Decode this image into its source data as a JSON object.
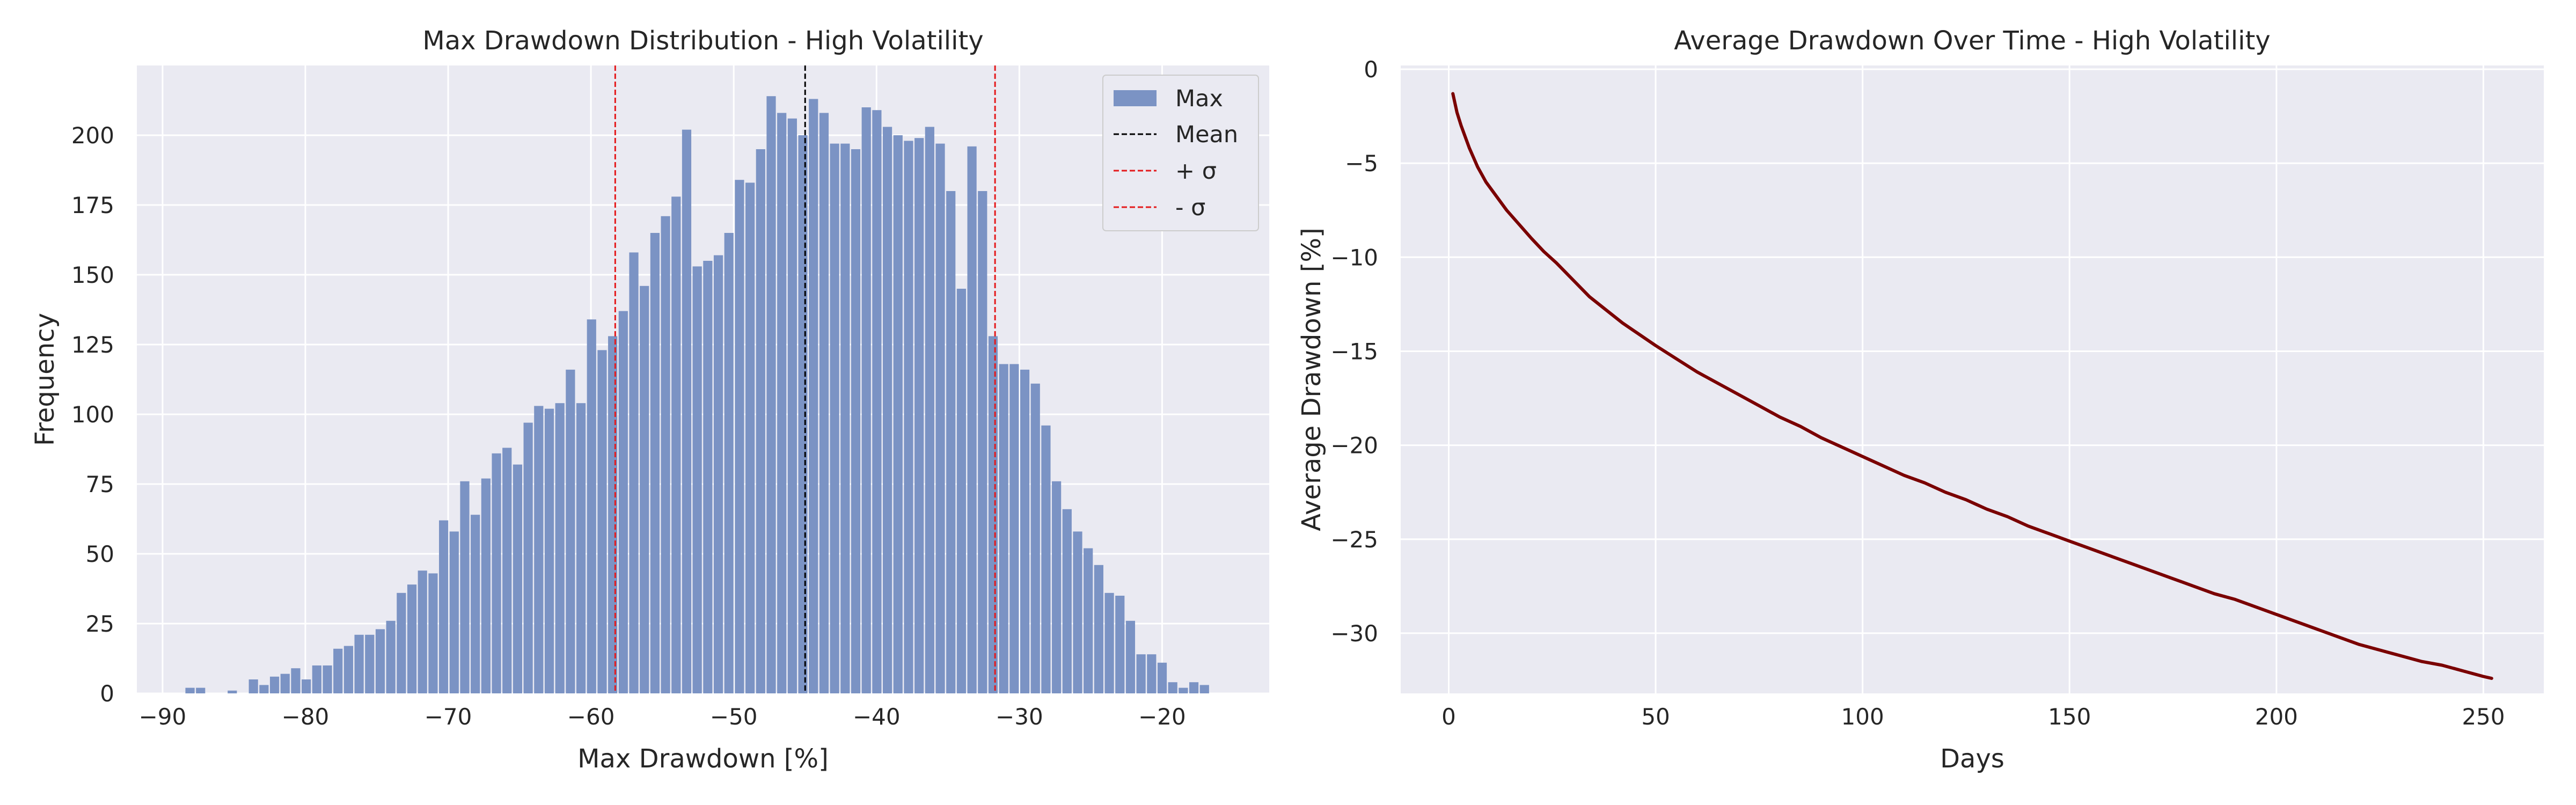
{
  "colors": {
    "background": "#EAEAF2",
    "grid": "#FFFFFF",
    "bar": "#7B93C4",
    "mean_line": "#000000",
    "sigma_line": "#E41A1C",
    "avg_line": "#7A0000"
  },
  "chart_data": [
    {
      "type": "bar",
      "title": "Max Drawdown Distribution - High Volatility",
      "xlabel": "Max Drawdown [%]",
      "ylabel": "Frequency",
      "xlim": [
        -91.8,
        -12.5
      ],
      "ylim": [
        0,
        225
      ],
      "xticks": [
        -90,
        -80,
        -70,
        -60,
        -50,
        -40,
        -30,
        -20
      ],
      "yticks": [
        0,
        25,
        50,
        75,
        100,
        125,
        150,
        175,
        200
      ],
      "grid": true,
      "legend_position": "top-right",
      "bins": {
        "start": -88.4,
        "width": 0.74,
        "counts": [
          2,
          2,
          0,
          0,
          1,
          0,
          5,
          3,
          6,
          7,
          9,
          5,
          10,
          10,
          16,
          17,
          21,
          21,
          23,
          26,
          36,
          39,
          44,
          43,
          62,
          58,
          76,
          64,
          77,
          86,
          88,
          82,
          97,
          103,
          102,
          104,
          116,
          104,
          134,
          123,
          128,
          137,
          158,
          146,
          165,
          171,
          178,
          202,
          153,
          155,
          157,
          165,
          184,
          183,
          195,
          214,
          208,
          206,
          200,
          213,
          208,
          197,
          197,
          195,
          210,
          209,
          203,
          200,
          198,
          199,
          203,
          197,
          180,
          145,
          196,
          180,
          128,
          118,
          118,
          116,
          111,
          96,
          76,
          66,
          58,
          52,
          46,
          36,
          35,
          26,
          14,
          14,
          11,
          4,
          2,
          4,
          3
        ]
      },
      "reference_lines": {
        "mean": -45.0,
        "plus_sigma": -58.3,
        "minus_sigma": -31.7
      },
      "legend": [
        {
          "label": "Max",
          "kind": "patch"
        },
        {
          "label": "Mean",
          "kind": "line-dashed-black"
        },
        {
          "label": "+ σ",
          "kind": "line-dashed-red"
        },
        {
          "label": "- σ",
          "kind": "line-dashed-red"
        }
      ]
    },
    {
      "type": "line",
      "title": "Average Drawdown Over Time - High Volatility",
      "xlabel": "Days",
      "ylabel": "Average Drawdown [%]",
      "xlim": [
        -11.6,
        264.6
      ],
      "ylim": [
        -33.2,
        0.2
      ],
      "xticks": [
        0,
        50,
        100,
        150,
        200,
        250
      ],
      "yticks": [
        0,
        -5,
        -10,
        -15,
        -20,
        -25,
        -30
      ],
      "grid": true,
      "series": [
        {
          "x": [
            1,
            2,
            3,
            4,
            5,
            6,
            7,
            8,
            9,
            10,
            12,
            14,
            16,
            18,
            20,
            23,
            26,
            30,
            34,
            38,
            42,
            46,
            50,
            55,
            60,
            65,
            70,
            75,
            80,
            85,
            90,
            95,
            100,
            105,
            110,
            115,
            120,
            125,
            130,
            135,
            140,
            145,
            150,
            155,
            160,
            165,
            170,
            175,
            180,
            185,
            190,
            195,
            200,
            205,
            210,
            215,
            220,
            225,
            230,
            235,
            240,
            245,
            250,
            252
          ],
          "y": [
            -1.3,
            -2.3,
            -3.0,
            -3.6,
            -4.2,
            -4.7,
            -5.2,
            -5.6,
            -6.0,
            -6.3,
            -6.9,
            -7.5,
            -8.0,
            -8.5,
            -9.0,
            -9.7,
            -10.3,
            -11.2,
            -12.1,
            -12.8,
            -13.5,
            -14.1,
            -14.7,
            -15.4,
            -16.1,
            -16.7,
            -17.3,
            -17.9,
            -18.5,
            -19.0,
            -19.6,
            -20.1,
            -20.6,
            -21.1,
            -21.6,
            -22.0,
            -22.5,
            -22.9,
            -23.4,
            -23.8,
            -24.3,
            -24.7,
            -25.1,
            -25.5,
            -25.9,
            -26.3,
            -26.7,
            -27.1,
            -27.5,
            -27.9,
            -28.2,
            -28.6,
            -29.0,
            -29.4,
            -29.8,
            -30.2,
            -30.6,
            -30.9,
            -31.2,
            -31.5,
            -31.7,
            -32.0,
            -32.3,
            -32.4
          ]
        }
      ]
    }
  ]
}
